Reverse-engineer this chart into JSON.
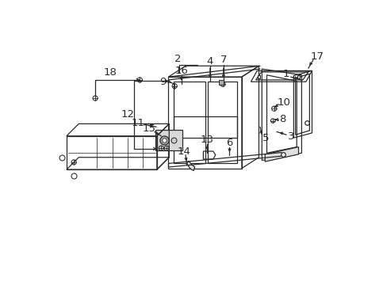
{
  "bg_color": "#ffffff",
  "lc": "#2a2a2a",
  "lw": 0.9,
  "figsize": [
    4.89,
    3.6
  ],
  "dpi": 100,
  "label_fs": 9.5
}
